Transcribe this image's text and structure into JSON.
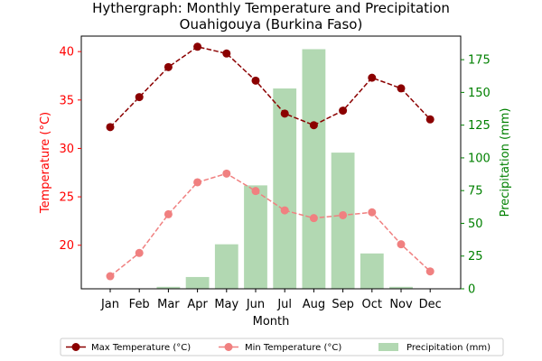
{
  "chart_data": {
    "type": "bar",
    "title": "Hythergraph: Monthly Temperature and Precipitation",
    "subtitle": "Ouahigouya (Burkina Faso)",
    "xlabel": "Month",
    "ylabel_left": "Temperature (°C)",
    "ylabel_right": "Precipitation (mm)",
    "categories": [
      "Jan",
      "Feb",
      "Mar",
      "Apr",
      "May",
      "Jun",
      "Jul",
      "Aug",
      "Sep",
      "Oct",
      "Nov",
      "Dec"
    ],
    "ylim_left": [
      15.5,
      41.6
    ],
    "ylim_right": [
      0,
      193
    ],
    "yticks_left": [
      20,
      25,
      30,
      35,
      40
    ],
    "yticks_right": [
      0,
      25,
      50,
      75,
      100,
      125,
      150,
      175
    ],
    "grid": false,
    "legend_position": "bottom-center",
    "series": [
      {
        "name": "Max Temperature (°C)",
        "type": "line",
        "axis": "left",
        "color": "#8b0000",
        "linestyle": "dashed",
        "marker": "circle",
        "values": [
          32.2,
          35.3,
          38.4,
          40.5,
          39.8,
          37.0,
          33.6,
          32.4,
          33.9,
          37.3,
          36.2,
          33.0
        ]
      },
      {
        "name": "Min Temperature (°C)",
        "type": "line",
        "axis": "left",
        "color": "#f08080",
        "linestyle": "dashed",
        "marker": "circle",
        "values": [
          16.8,
          19.2,
          23.2,
          26.5,
          27.4,
          25.6,
          23.6,
          22.8,
          23.1,
          23.4,
          20.1,
          17.3
        ]
      },
      {
        "name": "Precipitation (mm)",
        "type": "bar",
        "axis": "right",
        "color": "#b2d8b2",
        "values": [
          0,
          0,
          1.5,
          9.0,
          34.0,
          79.0,
          153.0,
          183.0,
          104.0,
          27.0,
          1.5,
          0
        ]
      }
    ]
  },
  "colors": {
    "left_axis": "#ff0000",
    "right_axis": "#008000",
    "axis": "#000000"
  }
}
